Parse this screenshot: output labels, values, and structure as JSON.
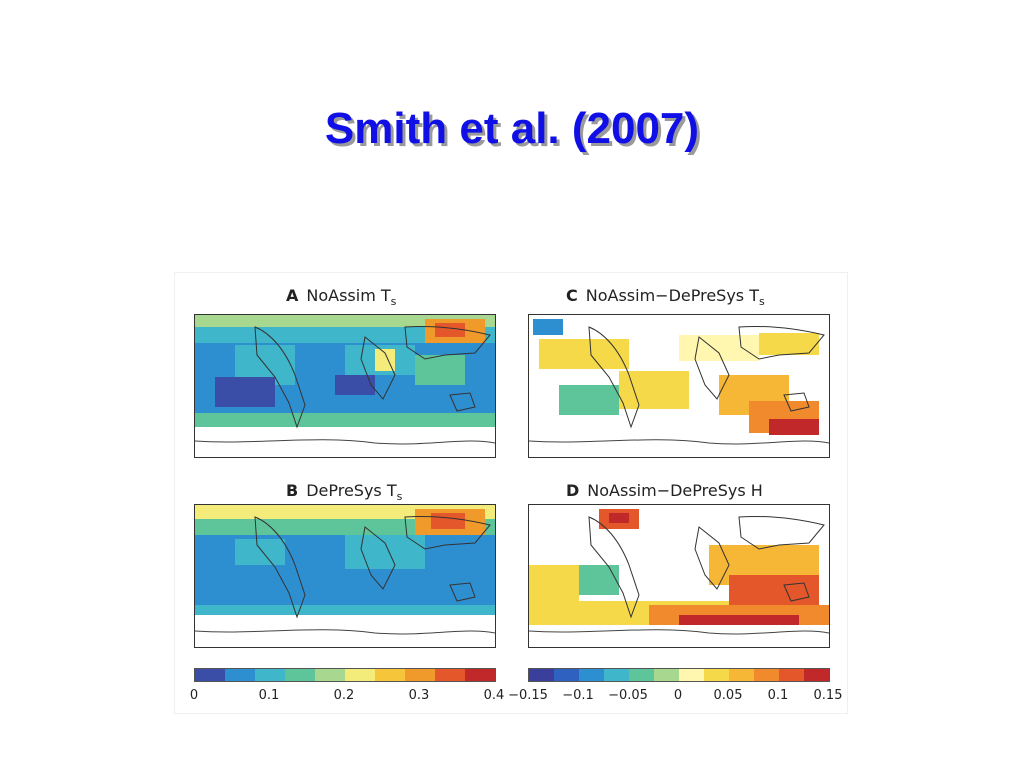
{
  "slide": {
    "title": "Smith et al. (2007)"
  },
  "figure": {
    "panels": [
      {
        "letter": "A",
        "label": "NoAssim",
        "var": "T",
        "sub": "s"
      },
      {
        "letter": "B",
        "label": "DePreSys",
        "var": "T",
        "sub": "s"
      },
      {
        "letter": "C",
        "label": "NoAssim−DePreSys",
        "var": "T",
        "sub": "s"
      },
      {
        "letter": "D",
        "label": "NoAssim−DePreSys",
        "var": "H",
        "sub": ""
      }
    ],
    "colorbar_left": {
      "colors": [
        "#3a4ea8",
        "#2e8fd0",
        "#3fb6c9",
        "#5ec59a",
        "#a8d890",
        "#f4ec7a",
        "#f6c53a",
        "#f09a2c",
        "#e4572a",
        "#c0282a"
      ],
      "labels": [
        "0",
        "0.1",
        "0.2",
        "0.3",
        "0.4"
      ]
    },
    "colorbar_right": {
      "colors": [
        "#3a3f9c",
        "#2f62c0",
        "#2e8fd0",
        "#3fb6c9",
        "#5ec59a",
        "#a8d890",
        "#fff7b0",
        "#f6d948",
        "#f6b636",
        "#f08a2c",
        "#e4572a",
        "#c0282a"
      ],
      "labels": [
        "−0.15",
        "−0.1",
        "−0.05",
        "0",
        "0.05",
        "0.1",
        "0.15"
      ]
    }
  }
}
